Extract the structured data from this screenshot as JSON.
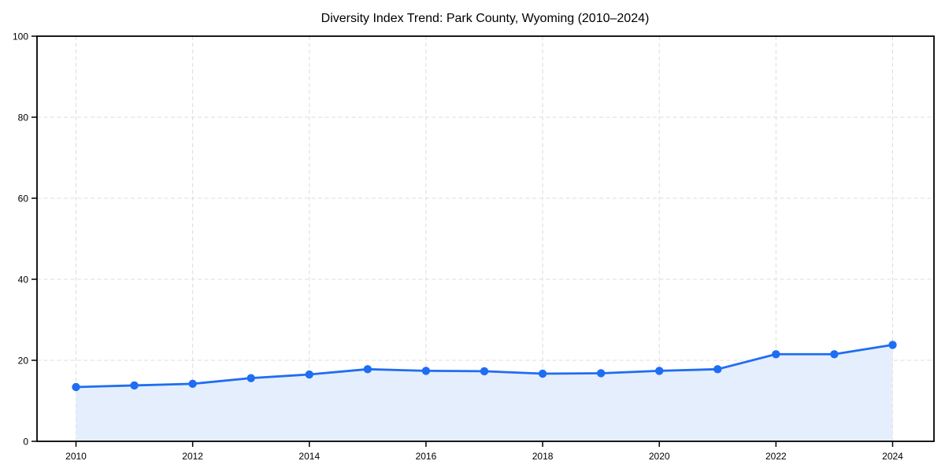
{
  "chart_data": {
    "type": "area",
    "title": "Diversity Index Trend: Park County, Wyoming (2010–2024)",
    "x": [
      2010,
      2011,
      2012,
      2013,
      2014,
      2015,
      2016,
      2017,
      2018,
      2019,
      2020,
      2021,
      2022,
      2023,
      2024
    ],
    "series": [
      {
        "name": "Diversity Index",
        "values": [
          13.4,
          13.8,
          14.2,
          15.6,
          16.5,
          17.8,
          17.4,
          17.3,
          16.7,
          16.8,
          17.4,
          17.8,
          21.5,
          21.5,
          23.8
        ]
      }
    ],
    "xlabel": "",
    "ylabel": "",
    "ylim": [
      0,
      100
    ],
    "yticks": [
      0,
      20,
      40,
      60,
      80,
      100
    ],
    "xticks": [
      2010,
      2012,
      2014,
      2016,
      2018,
      2020,
      2022,
      2024
    ],
    "grid": true,
    "grid_style": "dashed",
    "legend": "none",
    "colors": {
      "line": "#1f6df2",
      "marker": "#1f6df2",
      "fill": "#e5eefc",
      "grid": "#dcdcdc",
      "spine": "#000000",
      "text": "#000000",
      "background": "#ffffff"
    }
  }
}
